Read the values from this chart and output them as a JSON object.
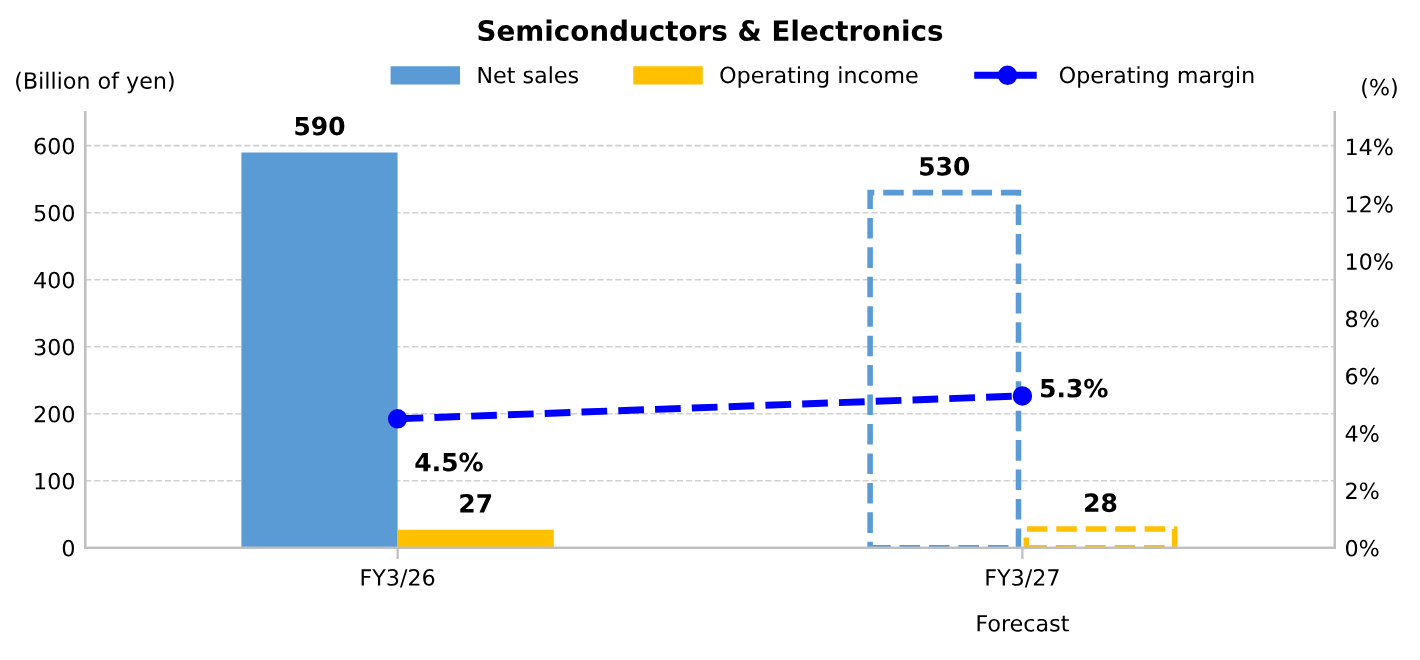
{
  "chart_data": {
    "type": "bar",
    "title": "Semiconductors & Electronics",
    "ylabel": "(Billion of yen)",
    "y2label": "(%)",
    "categories": [
      "FY3/26",
      "FY3/27"
    ],
    "series": [
      {
        "name": "Net sales",
        "color": "#5b9bd5",
        "values": [
          590,
          530
        ],
        "line_style": [
          "solid",
          "dashed"
        ]
      },
      {
        "name": "Operating income",
        "color": "#ffc000",
        "values": [
          27,
          28
        ],
        "line_style": [
          "solid",
          "dashed"
        ]
      },
      {
        "name": "Operating margin",
        "type": "line",
        "axis": "y2",
        "color": "#0000ff",
        "values": [
          4.5,
          5.3
        ],
        "marker": "circle",
        "line_style": "dashed",
        "value_labels": [
          "4.5%",
          "5.3%"
        ]
      }
    ],
    "data_labels": true,
    "annotations": [
      "Forecast"
    ],
    "ylim": [
      0,
      650
    ],
    "yticks": [
      0,
      100,
      200,
      300,
      400,
      500,
      600
    ],
    "y2lim": [
      0,
      15.2
    ],
    "y2ticks": [
      {
        "value": 0,
        "label": "0%"
      },
      {
        "value": 2,
        "label": "2%"
      },
      {
        "value": 4,
        "label": "4%"
      },
      {
        "value": 6,
        "label": "6%"
      },
      {
        "value": 8,
        "label": "8%"
      },
      {
        "value": 10,
        "label": "10%"
      },
      {
        "value": 12,
        "label": "12%"
      },
      {
        "value": 14,
        "label": "14%"
      }
    ],
    "grid": "y",
    "legend": "top"
  }
}
